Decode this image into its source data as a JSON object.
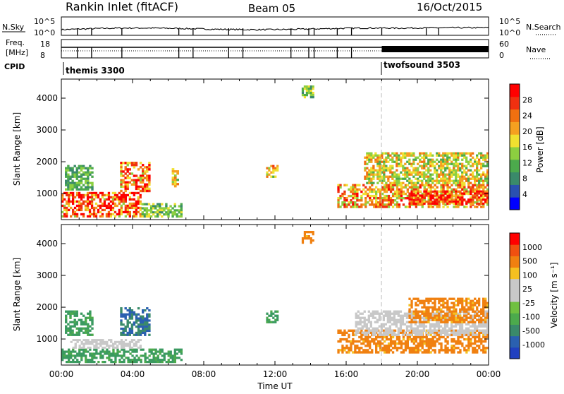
{
  "header": {
    "title": "Rankin Inlet (fitACF)",
    "beam": "Beam 05",
    "date": "16/Oct/2015"
  },
  "top_panels": {
    "nsky_label": "N.Sky",
    "nsearch_label": "N.Search",
    "nsky_ticks": [
      "10^5",
      "10^0"
    ],
    "nsearch_ticks": [
      "10^5",
      "10^0"
    ],
    "freq_label_1": "Freq.",
    "freq_label_2": "[MHz]",
    "freq_ticks": [
      "18",
      "8"
    ],
    "nave_label": "Nave",
    "nave_ticks": [
      "60",
      "0"
    ],
    "cpid_label": "CPID",
    "programs": [
      {
        "name": "themis 3300",
        "start_hour": 0
      },
      {
        "name": "twofsound 3503",
        "start_hour": 18
      }
    ]
  },
  "axes": {
    "xlabel": "Time UT",
    "x_ticks": [
      "00:00",
      "04:00",
      "08:00",
      "12:00",
      "16:00",
      "20:00",
      "00:00"
    ],
    "ylabel": "Slant Range [km]",
    "y_ticks": [
      "1000",
      "2000",
      "3000",
      "4000"
    ]
  },
  "power_colorbar": {
    "label": "Power [dB]",
    "ticks": [
      "28",
      "24",
      "20",
      "16",
      "12",
      "8",
      "4"
    ],
    "colors": [
      "#0000ff",
      "#2a50b0",
      "#3a8a6a",
      "#4caa4c",
      "#8ccf40",
      "#f0e030",
      "#f5a020",
      "#f07010",
      "#f03010",
      "#ff0000"
    ]
  },
  "velocity_colorbar": {
    "label": "Velocity [m s⁻¹]",
    "ticks": [
      "1000",
      "500",
      "100",
      "25",
      "-25",
      "-100",
      "-500",
      "-1000"
    ],
    "colors": [
      "#2040c0",
      "#2a60b0",
      "#3a8a6a",
      "#4caa4c",
      "#70c040",
      "#c8c8c8",
      "#c8c8c8",
      "#f5c020",
      "#f08010",
      "#f05010",
      "#ff0000"
    ]
  },
  "chart_data": [
    {
      "type": "heatmap",
      "title": "Power",
      "xlabel": "Time UT",
      "ylabel": "Slant Range [km]",
      "xlim": [
        0,
        24
      ],
      "ylim": [
        180,
        4600
      ],
      "colorbar_label": "Power [dB]",
      "colorbar_range": [
        0,
        30
      ],
      "regions": [
        {
          "t0": 0.0,
          "t1": 4.5,
          "r0": 250,
          "r1": 1050,
          "value": 24
        },
        {
          "t0": 0.2,
          "t1": 1.8,
          "r0": 1100,
          "r1": 1900,
          "value": 10
        },
        {
          "t0": 3.3,
          "t1": 5.0,
          "r0": 1050,
          "r1": 2000,
          "value": 22
        },
        {
          "t0": 4.5,
          "t1": 6.8,
          "r0": 250,
          "r1": 700,
          "value": 12
        },
        {
          "t0": 6.2,
          "t1": 6.6,
          "r0": 1200,
          "r1": 1800,
          "value": 16
        },
        {
          "t0": 11.5,
          "t1": 12.2,
          "r0": 1500,
          "r1": 1900,
          "value": 18
        },
        {
          "t0": 15.5,
          "t1": 24.0,
          "r0": 550,
          "r1": 1300,
          "value": 20
        },
        {
          "t0": 17.0,
          "t1": 24.0,
          "r0": 1300,
          "r1": 2300,
          "value": 16
        },
        {
          "t0": 19.5,
          "t1": 24.0,
          "r0": 650,
          "r1": 1100,
          "value": 26
        },
        {
          "t0": 13.5,
          "t1": 14.2,
          "r0": 4000,
          "r1": 4400,
          "value": 12
        }
      ]
    },
    {
      "type": "heatmap",
      "title": "Velocity",
      "xlabel": "Time UT",
      "ylabel": "Slant Range [km]",
      "xlim": [
        0,
        24
      ],
      "ylim": [
        180,
        4600
      ],
      "colorbar_label": "Velocity [m s⁻¹]",
      "colorbar_range": [
        -1000,
        1000
      ],
      "regions": [
        {
          "t0": 0.0,
          "t1": 6.8,
          "r0": 250,
          "r1": 700,
          "value": 60
        },
        {
          "t0": 0.5,
          "t1": 4.5,
          "r0": 700,
          "r1": 1000,
          "value": 0
        },
        {
          "t0": 3.3,
          "t1": 5.0,
          "r0": 1100,
          "r1": 2000,
          "value": 300
        },
        {
          "t0": 0.2,
          "t1": 1.8,
          "r0": 1100,
          "r1": 1900,
          "value": 60
        },
        {
          "t0": 11.5,
          "t1": 12.2,
          "r0": 1500,
          "r1": 1900,
          "value": 60
        },
        {
          "t0": 15.5,
          "t1": 24.0,
          "r0": 550,
          "r1": 1300,
          "value": -150
        },
        {
          "t0": 16.5,
          "t1": 24.0,
          "r0": 1100,
          "r1": 1900,
          "value": 0
        },
        {
          "t0": 19.5,
          "t1": 24.0,
          "r0": 1500,
          "r1": 2300,
          "value": -150
        },
        {
          "t0": 13.5,
          "t1": 14.2,
          "r0": 4000,
          "r1": 4400,
          "value": -150
        }
      ]
    }
  ]
}
